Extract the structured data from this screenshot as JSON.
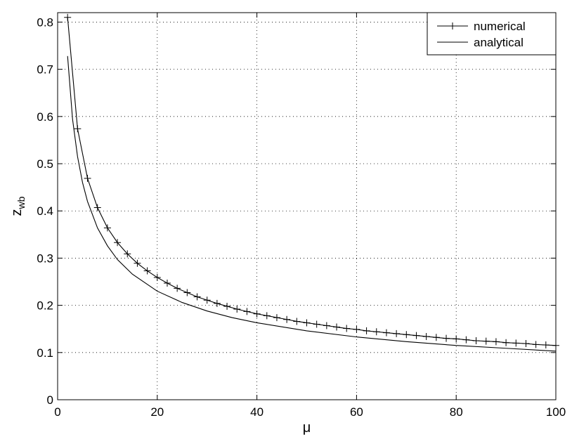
{
  "chart_data": {
    "type": "line",
    "title": "",
    "xlabel": "μ",
    "ylabel": {
      "main": "z",
      "subscript": "wb"
    },
    "xlim": [
      0,
      100
    ],
    "ylim": [
      0,
      0.82
    ],
    "xticks": [
      0,
      20,
      40,
      60,
      80,
      100
    ],
    "yticks": [
      0,
      0.1,
      0.2,
      0.3,
      0.4,
      0.5,
      0.6,
      0.7,
      0.8
    ],
    "xtick_labels": [
      "0",
      "20",
      "40",
      "60",
      "80",
      "100"
    ],
    "ytick_labels": [
      "0",
      "0.1",
      "0.2",
      "0.3",
      "0.4",
      "0.5",
      "0.6",
      "0.7",
      "0.8"
    ],
    "grid": true,
    "legend_position": "top-right",
    "series": [
      {
        "name": "numerical",
        "style": "solid line with plus markers",
        "color": "#000000",
        "x": [
          2,
          4,
          6,
          8,
          10,
          12,
          14,
          16,
          18,
          20,
          22,
          24,
          26,
          28,
          30,
          32,
          34,
          36,
          38,
          40,
          42,
          44,
          46,
          48,
          50,
          52,
          54,
          56,
          58,
          60,
          62,
          64,
          66,
          68,
          70,
          72,
          74,
          76,
          78,
          80,
          82,
          84,
          86,
          88,
          90,
          92,
          94,
          96,
          98,
          100
        ],
        "y": [
          0.81,
          0.574,
          0.469,
          0.407,
          0.364,
          0.333,
          0.309,
          0.289,
          0.273,
          0.259,
          0.247,
          0.236,
          0.227,
          0.218,
          0.211,
          0.204,
          0.198,
          0.192,
          0.187,
          0.182,
          0.178,
          0.174,
          0.17,
          0.166,
          0.163,
          0.16,
          0.157,
          0.154,
          0.151,
          0.149,
          0.146,
          0.144,
          0.142,
          0.14,
          0.138,
          0.136,
          0.134,
          0.132,
          0.13,
          0.129,
          0.127,
          0.125,
          0.124,
          0.123,
          0.121,
          0.12,
          0.119,
          0.117,
          0.116,
          0.115
        ]
      },
      {
        "name": "analytical",
        "style": "solid line",
        "color": "#000000",
        "x": [
          2,
          3,
          4,
          5,
          6,
          8,
          10,
          12,
          15,
          20,
          25,
          30,
          35,
          40,
          50,
          60,
          70,
          80,
          90,
          100
        ],
        "y": [
          0.728,
          0.594,
          0.515,
          0.46,
          0.42,
          0.364,
          0.326,
          0.297,
          0.266,
          0.23,
          0.206,
          0.188,
          0.174,
          0.163,
          0.146,
          0.133,
          0.123,
          0.115,
          0.109,
          0.103
        ]
      }
    ]
  }
}
